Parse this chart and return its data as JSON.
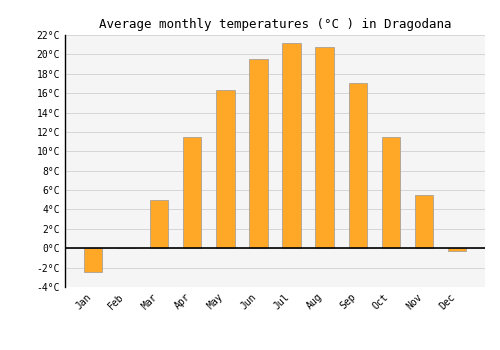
{
  "title": "Average monthly temperatures (°C ) in Dragodana",
  "months": [
    "Jan",
    "Feb",
    "Mar",
    "Apr",
    "May",
    "Jun",
    "Jul",
    "Aug",
    "Sep",
    "Oct",
    "Nov",
    "Dec"
  ],
  "values": [
    -2.5,
    0,
    5,
    11.5,
    16.3,
    19.5,
    21.2,
    20.8,
    17,
    11.5,
    5.5,
    -0.3
  ],
  "bar_color": "#FFA726",
  "bar_edge_color": "#999999",
  "ylim": [
    -4,
    22
  ],
  "yticks": [
    -4,
    -2,
    0,
    2,
    4,
    6,
    8,
    10,
    12,
    14,
    16,
    18,
    20,
    22
  ],
  "ytick_labels": [
    "-4°C",
    "-2°C",
    "0°C",
    "2°C",
    "4°C",
    "6°C",
    "8°C",
    "10°C",
    "12°C",
    "14°C",
    "16°C",
    "18°C",
    "20°C",
    "22°C"
  ],
  "background_color": "#ffffff",
  "plot_background": "#f5f5f5",
  "grid_color": "#d0d0d0",
  "zero_line_color": "#000000",
  "title_fontsize": 9,
  "tick_fontsize": 7,
  "bar_width": 0.55
}
